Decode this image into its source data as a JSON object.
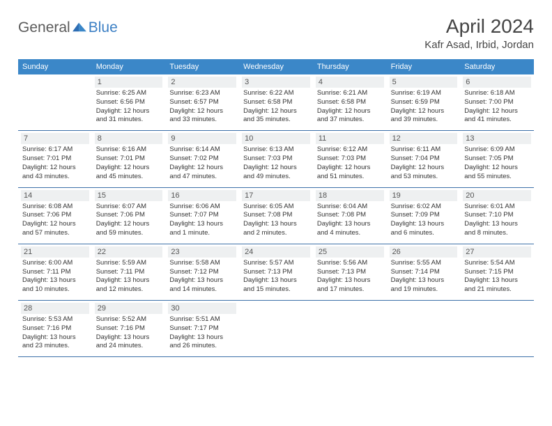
{
  "logo": {
    "word1": "General",
    "word2": "Blue",
    "brand_color": "#3b7fc4",
    "text_color": "#5a5a5a"
  },
  "title": "April 2024",
  "location": "Kafr Asad, Irbid, Jordan",
  "colors": {
    "header_bg": "#3b87c8",
    "rule": "#3b6fa8",
    "daynum_bg": "#eef0f1"
  },
  "dow": [
    "Sunday",
    "Monday",
    "Tuesday",
    "Wednesday",
    "Thursday",
    "Friday",
    "Saturday"
  ],
  "weeks": [
    [
      null,
      {
        "n": "1",
        "sr": "Sunrise: 6:25 AM",
        "ss": "Sunset: 6:56 PM",
        "d1": "Daylight: 12 hours",
        "d2": "and 31 minutes."
      },
      {
        "n": "2",
        "sr": "Sunrise: 6:23 AM",
        "ss": "Sunset: 6:57 PM",
        "d1": "Daylight: 12 hours",
        "d2": "and 33 minutes."
      },
      {
        "n": "3",
        "sr": "Sunrise: 6:22 AM",
        "ss": "Sunset: 6:58 PM",
        "d1": "Daylight: 12 hours",
        "d2": "and 35 minutes."
      },
      {
        "n": "4",
        "sr": "Sunrise: 6:21 AM",
        "ss": "Sunset: 6:58 PM",
        "d1": "Daylight: 12 hours",
        "d2": "and 37 minutes."
      },
      {
        "n": "5",
        "sr": "Sunrise: 6:19 AM",
        "ss": "Sunset: 6:59 PM",
        "d1": "Daylight: 12 hours",
        "d2": "and 39 minutes."
      },
      {
        "n": "6",
        "sr": "Sunrise: 6:18 AM",
        "ss": "Sunset: 7:00 PM",
        "d1": "Daylight: 12 hours",
        "d2": "and 41 minutes."
      }
    ],
    [
      {
        "n": "7",
        "sr": "Sunrise: 6:17 AM",
        "ss": "Sunset: 7:01 PM",
        "d1": "Daylight: 12 hours",
        "d2": "and 43 minutes."
      },
      {
        "n": "8",
        "sr": "Sunrise: 6:16 AM",
        "ss": "Sunset: 7:01 PM",
        "d1": "Daylight: 12 hours",
        "d2": "and 45 minutes."
      },
      {
        "n": "9",
        "sr": "Sunrise: 6:14 AM",
        "ss": "Sunset: 7:02 PM",
        "d1": "Daylight: 12 hours",
        "d2": "and 47 minutes."
      },
      {
        "n": "10",
        "sr": "Sunrise: 6:13 AM",
        "ss": "Sunset: 7:03 PM",
        "d1": "Daylight: 12 hours",
        "d2": "and 49 minutes."
      },
      {
        "n": "11",
        "sr": "Sunrise: 6:12 AM",
        "ss": "Sunset: 7:03 PM",
        "d1": "Daylight: 12 hours",
        "d2": "and 51 minutes."
      },
      {
        "n": "12",
        "sr": "Sunrise: 6:11 AM",
        "ss": "Sunset: 7:04 PM",
        "d1": "Daylight: 12 hours",
        "d2": "and 53 minutes."
      },
      {
        "n": "13",
        "sr": "Sunrise: 6:09 AM",
        "ss": "Sunset: 7:05 PM",
        "d1": "Daylight: 12 hours",
        "d2": "and 55 minutes."
      }
    ],
    [
      {
        "n": "14",
        "sr": "Sunrise: 6:08 AM",
        "ss": "Sunset: 7:06 PM",
        "d1": "Daylight: 12 hours",
        "d2": "and 57 minutes."
      },
      {
        "n": "15",
        "sr": "Sunrise: 6:07 AM",
        "ss": "Sunset: 7:06 PM",
        "d1": "Daylight: 12 hours",
        "d2": "and 59 minutes."
      },
      {
        "n": "16",
        "sr": "Sunrise: 6:06 AM",
        "ss": "Sunset: 7:07 PM",
        "d1": "Daylight: 13 hours",
        "d2": "and 1 minute."
      },
      {
        "n": "17",
        "sr": "Sunrise: 6:05 AM",
        "ss": "Sunset: 7:08 PM",
        "d1": "Daylight: 13 hours",
        "d2": "and 2 minutes."
      },
      {
        "n": "18",
        "sr": "Sunrise: 6:04 AM",
        "ss": "Sunset: 7:08 PM",
        "d1": "Daylight: 13 hours",
        "d2": "and 4 minutes."
      },
      {
        "n": "19",
        "sr": "Sunrise: 6:02 AM",
        "ss": "Sunset: 7:09 PM",
        "d1": "Daylight: 13 hours",
        "d2": "and 6 minutes."
      },
      {
        "n": "20",
        "sr": "Sunrise: 6:01 AM",
        "ss": "Sunset: 7:10 PM",
        "d1": "Daylight: 13 hours",
        "d2": "and 8 minutes."
      }
    ],
    [
      {
        "n": "21",
        "sr": "Sunrise: 6:00 AM",
        "ss": "Sunset: 7:11 PM",
        "d1": "Daylight: 13 hours",
        "d2": "and 10 minutes."
      },
      {
        "n": "22",
        "sr": "Sunrise: 5:59 AM",
        "ss": "Sunset: 7:11 PM",
        "d1": "Daylight: 13 hours",
        "d2": "and 12 minutes."
      },
      {
        "n": "23",
        "sr": "Sunrise: 5:58 AM",
        "ss": "Sunset: 7:12 PM",
        "d1": "Daylight: 13 hours",
        "d2": "and 14 minutes."
      },
      {
        "n": "24",
        "sr": "Sunrise: 5:57 AM",
        "ss": "Sunset: 7:13 PM",
        "d1": "Daylight: 13 hours",
        "d2": "and 15 minutes."
      },
      {
        "n": "25",
        "sr": "Sunrise: 5:56 AM",
        "ss": "Sunset: 7:13 PM",
        "d1": "Daylight: 13 hours",
        "d2": "and 17 minutes."
      },
      {
        "n": "26",
        "sr": "Sunrise: 5:55 AM",
        "ss": "Sunset: 7:14 PM",
        "d1": "Daylight: 13 hours",
        "d2": "and 19 minutes."
      },
      {
        "n": "27",
        "sr": "Sunrise: 5:54 AM",
        "ss": "Sunset: 7:15 PM",
        "d1": "Daylight: 13 hours",
        "d2": "and 21 minutes."
      }
    ],
    [
      {
        "n": "28",
        "sr": "Sunrise: 5:53 AM",
        "ss": "Sunset: 7:16 PM",
        "d1": "Daylight: 13 hours",
        "d2": "and 23 minutes."
      },
      {
        "n": "29",
        "sr": "Sunrise: 5:52 AM",
        "ss": "Sunset: 7:16 PM",
        "d1": "Daylight: 13 hours",
        "d2": "and 24 minutes."
      },
      {
        "n": "30",
        "sr": "Sunrise: 5:51 AM",
        "ss": "Sunset: 7:17 PM",
        "d1": "Daylight: 13 hours",
        "d2": "and 26 minutes."
      },
      null,
      null,
      null,
      null
    ]
  ]
}
